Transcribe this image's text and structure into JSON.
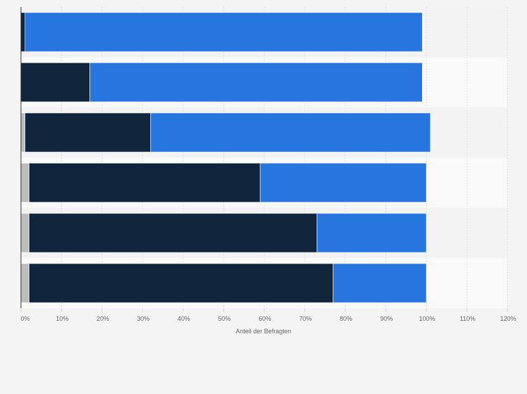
{
  "chart_data": {
    "type": "bar",
    "orientation": "horizontal",
    "stacked": true,
    "xlabel": "Anteil der Befragten",
    "ylabel": "",
    "xlim": [
      0,
      120
    ],
    "x_ticks": [
      "0%",
      "10%",
      "20%",
      "30%",
      "40%",
      "50%",
      "60%",
      "70%",
      "80%",
      "90%",
      "100%",
      "110%",
      "120%"
    ],
    "categories": [
      "",
      "",
      "",
      "",
      "",
      ""
    ],
    "series": [
      {
        "color": "#bdbdbd",
        "values": [
          0,
          0,
          1,
          2,
          2,
          2
        ]
      },
      {
        "color": "#0f253b",
        "values": [
          1,
          17,
          31,
          57,
          71,
          75
        ]
      },
      {
        "color": "#2776df",
        "values": [
          98,
          82,
          69,
          41,
          27,
          23
        ]
      }
    ],
    "grid": true,
    "legend": "none"
  }
}
